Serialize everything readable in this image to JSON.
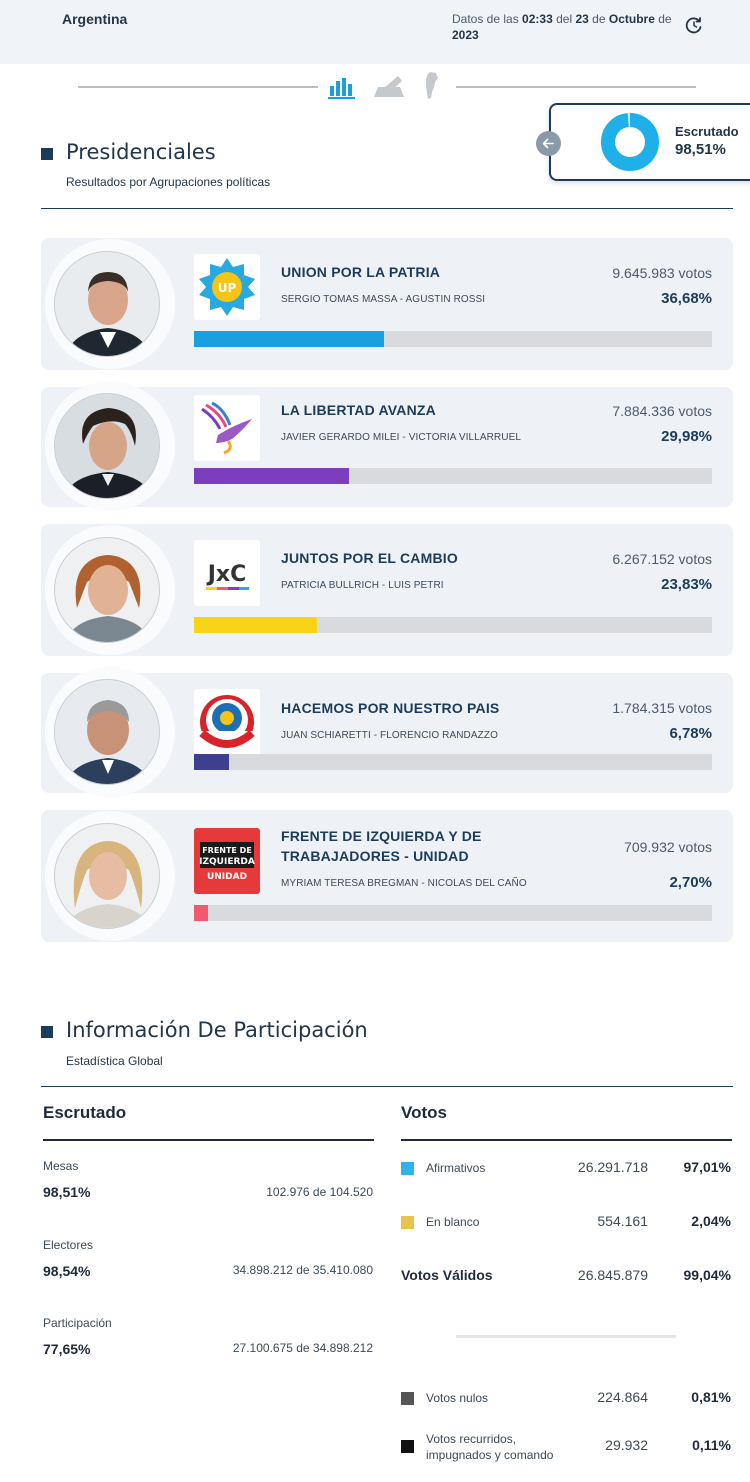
{
  "header": {
    "country": "Argentina",
    "date_prefix": "Datos de las",
    "time": "02:33",
    "date_mid1": "del",
    "day": "23",
    "date_mid2": "de",
    "month": "Octubre",
    "date_mid3": "de",
    "year": "2023"
  },
  "escrutado_float": {
    "label": "Escrutado",
    "value": "98,51%",
    "fraction": 0.9851
  },
  "presidenciales": {
    "title": "Presidenciales",
    "subtitle": "Resultados por Agrupaciones políticas",
    "parties": [
      {
        "name": "UNION POR LA PATRIA",
        "candidates": "SERGIO TOMAS MASSA   -   AGUSTIN ROSSI",
        "votes": "9.645.983 votos",
        "pct": "36,68%",
        "share": 0.3668,
        "color": "#1a9fdf",
        "logo_text": "UP"
      },
      {
        "name": "LA LIBERTAD AVANZA",
        "candidates": "JAVIER GERARDO MILEI   -   VICTORIA VILLARRUEL",
        "votes": "7.884.336 votos",
        "pct": "29,98%",
        "share": 0.2998,
        "color": "#7b3fbe"
      },
      {
        "name": "JUNTOS POR EL CAMBIO",
        "candidates": "PATRICIA BULLRICH   -   LUIS PETRI",
        "votes": "6.267.152 votos",
        "pct": "23,83%",
        "share": 0.2383,
        "color": "#f7d417",
        "logo_text": "JxC"
      },
      {
        "name": "HACEMOS POR NUESTRO PAIS",
        "candidates": "JUAN SCHIARETTI   -   FLORENCIO RANDAZZO",
        "votes": "1.784.315 votos",
        "pct": "6,78%",
        "share": 0.0678,
        "color": "#3f3f8f"
      },
      {
        "name": "FRENTE DE IZQUIERDA Y DE TRABAJADORES - UNIDAD",
        "candidates": "MYRIAM TERESA BREGMAN   -   NICOLAS DEL CAÑO",
        "votes": "709.932 votos",
        "pct": "2,70%",
        "share": 0.027,
        "color": "#f25a6b",
        "logo_lines": [
          "FRENTE DE",
          "IZQUIERDA",
          "UNIDAD"
        ]
      }
    ]
  },
  "participacion": {
    "title": "Información De Participación",
    "subtitle": "Estadística Global",
    "escrutado": {
      "title": "Escrutado",
      "rows": [
        {
          "label": "Mesas",
          "pct": "98,51%",
          "range": "102.976 de 104.520"
        },
        {
          "label": "Electores",
          "pct": "98,54%",
          "range": "34.898.212 de 35.410.080"
        },
        {
          "label": "Participación",
          "pct": "77,65%",
          "range": "27.100.675 de 34.898.212"
        }
      ]
    },
    "votos": {
      "title": "Votos",
      "afirmativos": {
        "label": "Afirmativos",
        "num": "26.291.718",
        "pct": "97,01%",
        "color": "#2fb3ea"
      },
      "en_blanco": {
        "label": "En blanco",
        "num": "554.161",
        "pct": "2,04%",
        "color": "#e8c44d"
      },
      "validos": {
        "label": "Votos Válidos",
        "num": "26.845.879",
        "pct": "99,04%"
      },
      "nulos": {
        "label": "Votos nulos",
        "num": "224.864",
        "pct": "0,81%",
        "color": "#555555"
      },
      "recurridos": {
        "label": "Votos recurridos, impugnados y comando",
        "num": "29.932",
        "pct": "0,11%",
        "color": "#111111"
      }
    }
  }
}
